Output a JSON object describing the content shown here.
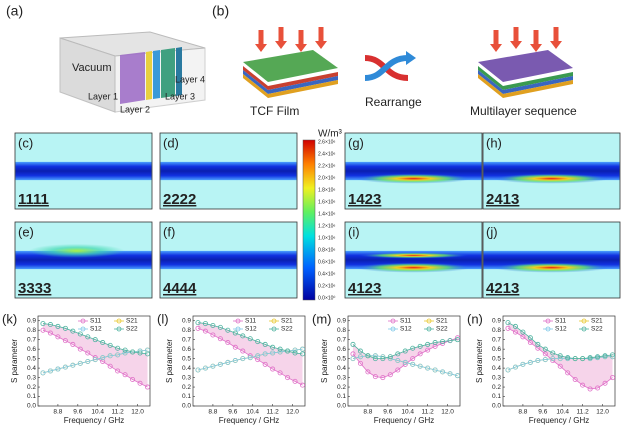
{
  "top": {
    "a_label": "(a)",
    "b_label": "(b)",
    "vacuum": "Vacuum",
    "layers": [
      "Layer 1",
      "Layer 2",
      "Layer 3",
      "Layer 4"
    ],
    "tcf": "TCF Film",
    "rearrange": "Rearrange",
    "multilayer": "Multilayer sequence"
  },
  "fields": [
    {
      "label": "(c)",
      "code": "1111"
    },
    {
      "label": "(d)",
      "code": "2222"
    },
    {
      "label": "(e)",
      "code": "3333"
    },
    {
      "label": "(f)",
      "code": "4444"
    },
    {
      "label": "(g)",
      "code": "1423"
    },
    {
      "label": "(h)",
      "code": "2413"
    },
    {
      "label": "(i)",
      "code": "4123"
    },
    {
      "label": "(j)",
      "code": "4213"
    }
  ],
  "colorbar": {
    "unit": "W/m³",
    "ticks": [
      "2.6×10⁶",
      "2.4×10⁶",
      "2.2×10⁶",
      "2.0×10⁶",
      "1.8×10⁶",
      "1.6×10⁶",
      "1.4×10⁶",
      "1.2×10⁶",
      "1.0×10⁶",
      "0.8×10⁶",
      "0.6×10⁶",
      "0.4×10⁶",
      "0.2×10⁶",
      "0.0×10⁰"
    ]
  },
  "chart_data": [
    {
      "type": "line",
      "panel": "(k)",
      "xlabel": "Frequency / GHz",
      "ylabel": "S parameter",
      "fill_color": "#f0b8dc",
      "x": [
        8.2,
        8.5,
        8.8,
        9.1,
        9.4,
        9.7,
        10.0,
        10.3,
        10.6,
        10.9,
        11.2,
        11.5,
        11.8,
        12.1,
        12.4
      ],
      "series": [
        {
          "name": "S11",
          "color": "#e070c8",
          "values": [
            0.8,
            0.77,
            0.73,
            0.69,
            0.65,
            0.6,
            0.56,
            0.51,
            0.47,
            0.42,
            0.37,
            0.33,
            0.28,
            0.24,
            0.2
          ]
        },
        {
          "name": "S21",
          "color": "#e8c830",
          "values": [
            0.35,
            0.37,
            0.39,
            0.41,
            0.43,
            0.45,
            0.47,
            0.49,
            0.51,
            0.53,
            0.54,
            0.56,
            0.57,
            0.58,
            0.59
          ]
        },
        {
          "name": "S12",
          "color": "#7fc8e8",
          "values": [
            0.35,
            0.37,
            0.39,
            0.41,
            0.43,
            0.45,
            0.47,
            0.49,
            0.51,
            0.53,
            0.54,
            0.56,
            0.57,
            0.58,
            0.59
          ]
        },
        {
          "name": "S22",
          "color": "#4fb3a0",
          "values": [
            0.87,
            0.86,
            0.84,
            0.82,
            0.79,
            0.76,
            0.73,
            0.7,
            0.67,
            0.64,
            0.61,
            0.59,
            0.57,
            0.56,
            0.55
          ]
        }
      ],
      "xlim": [
        8.0,
        12.5
      ],
      "ylim": [
        0,
        0.95
      ],
      "xticks": [
        8.8,
        9.6,
        10.4,
        11.2,
        {
          "value": 12,
          "label": "12.0"
        }
      ],
      "yticks": [
        {
          "value": 0,
          "label": "0.0"
        },
        0.1,
        0.2,
        0.3,
        0.4,
        0.5,
        0.6,
        0.7,
        0.8,
        0.9
      ]
    },
    {
      "type": "line",
      "panel": "(l)",
      "xlabel": "Frequency / GHz",
      "ylabel": "S parameter",
      "fill_color": "#f0b8dc",
      "x": [
        8.2,
        8.5,
        8.8,
        9.1,
        9.4,
        9.7,
        10.0,
        10.3,
        10.6,
        10.9,
        11.2,
        11.5,
        11.8,
        12.1,
        12.4
      ],
      "series": [
        {
          "name": "S11",
          "color": "#e070c8",
          "values": [
            0.82,
            0.79,
            0.75,
            0.71,
            0.67,
            0.62,
            0.58,
            0.53,
            0.49,
            0.44,
            0.39,
            0.35,
            0.3,
            0.26,
            0.22
          ]
        },
        {
          "name": "S21",
          "color": "#e8c830",
          "values": [
            0.38,
            0.4,
            0.42,
            0.44,
            0.46,
            0.48,
            0.5,
            0.51,
            0.53,
            0.55,
            0.56,
            0.57,
            0.58,
            0.59,
            0.6
          ]
        },
        {
          "name": "S12",
          "color": "#7fc8e8",
          "values": [
            0.38,
            0.4,
            0.42,
            0.44,
            0.46,
            0.48,
            0.5,
            0.51,
            0.53,
            0.55,
            0.56,
            0.57,
            0.58,
            0.59,
            0.6
          ]
        },
        {
          "name": "S22",
          "color": "#4fb3a0",
          "values": [
            0.88,
            0.87,
            0.85,
            0.83,
            0.8,
            0.77,
            0.74,
            0.71,
            0.68,
            0.65,
            0.62,
            0.6,
            0.58,
            0.56,
            0.55
          ]
        }
      ],
      "xlim": [
        8.0,
        12.5
      ],
      "ylim": [
        0,
        0.95
      ],
      "xticks": [
        8.8,
        9.6,
        10.4,
        11.2,
        {
          "value": 12,
          "label": "12.0"
        }
      ],
      "yticks": [
        {
          "value": 0,
          "label": "0.0"
        },
        0.1,
        0.2,
        0.3,
        0.4,
        0.5,
        0.6,
        0.7,
        0.8,
        0.9
      ]
    },
    {
      "type": "line",
      "panel": "(m)",
      "xlabel": "Frequency / GHz",
      "ylabel": "S parameter",
      "fill_color": "#f0b8dc",
      "x": [
        8.2,
        8.5,
        8.8,
        9.1,
        9.4,
        9.7,
        10.0,
        10.3,
        10.6,
        10.9,
        11.2,
        11.5,
        11.8,
        12.1,
        12.4
      ],
      "series": [
        {
          "name": "S11",
          "color": "#e070c8",
          "values": [
            0.55,
            0.45,
            0.36,
            0.31,
            0.3,
            0.33,
            0.38,
            0.44,
            0.5,
            0.55,
            0.59,
            0.63,
            0.66,
            0.69,
            0.72
          ]
        },
        {
          "name": "S21",
          "color": "#e8c830",
          "values": [
            0.5,
            0.52,
            0.53,
            0.53,
            0.52,
            0.5,
            0.48,
            0.46,
            0.44,
            0.42,
            0.4,
            0.38,
            0.36,
            0.34,
            0.32
          ]
        },
        {
          "name": "S12",
          "color": "#7fc8e8",
          "values": [
            0.5,
            0.52,
            0.53,
            0.53,
            0.52,
            0.5,
            0.48,
            0.46,
            0.44,
            0.42,
            0.4,
            0.38,
            0.36,
            0.34,
            0.32
          ]
        },
        {
          "name": "S22",
          "color": "#4fb3a0",
          "values": [
            0.65,
            0.58,
            0.53,
            0.5,
            0.5,
            0.52,
            0.55,
            0.58,
            0.61,
            0.63,
            0.65,
            0.67,
            0.68,
            0.69,
            0.7
          ]
        }
      ],
      "xlim": [
        8.0,
        12.5
      ],
      "ylim": [
        0,
        0.95
      ],
      "xticks": [
        8.8,
        9.6,
        10.4,
        11.2,
        {
          "value": 12,
          "label": "12.0"
        }
      ],
      "yticks": [
        {
          "value": 0,
          "label": "0.0"
        },
        0.1,
        0.2,
        0.3,
        0.4,
        0.5,
        0.6,
        0.7,
        0.8,
        0.9
      ]
    },
    {
      "type": "line",
      "panel": "(n)",
      "xlabel": "Frequency / GHz",
      "ylabel": "S parameter",
      "fill_color": "#f0b8dc",
      "x": [
        8.2,
        8.5,
        8.8,
        9.1,
        9.4,
        9.7,
        10.0,
        10.3,
        10.6,
        10.9,
        11.2,
        11.5,
        11.8,
        12.1,
        12.4
      ],
      "series": [
        {
          "name": "S11",
          "color": "#e070c8",
          "values": [
            0.82,
            0.78,
            0.73,
            0.67,
            0.61,
            0.55,
            0.48,
            0.42,
            0.35,
            0.28,
            0.22,
            0.18,
            0.19,
            0.24,
            0.3
          ]
        },
        {
          "name": "S21",
          "color": "#e8c830",
          "values": [
            0.38,
            0.41,
            0.44,
            0.46,
            0.48,
            0.49,
            0.5,
            0.5,
            0.5,
            0.5,
            0.5,
            0.5,
            0.51,
            0.52,
            0.52
          ]
        },
        {
          "name": "S12",
          "color": "#7fc8e8",
          "values": [
            0.38,
            0.41,
            0.44,
            0.46,
            0.48,
            0.49,
            0.5,
            0.5,
            0.5,
            0.5,
            0.5,
            0.5,
            0.51,
            0.52,
            0.52
          ]
        },
        {
          "name": "S22",
          "color": "#4fb3a0",
          "values": [
            0.88,
            0.84,
            0.78,
            0.72,
            0.65,
            0.6,
            0.56,
            0.53,
            0.51,
            0.5,
            0.5,
            0.51,
            0.52,
            0.53,
            0.54
          ]
        }
      ],
      "xlim": [
        8.0,
        12.5
      ],
      "ylim": [
        0,
        0.95
      ],
      "xticks": [
        8.8,
        9.6,
        10.4,
        11.2,
        {
          "value": 12,
          "label": "12.0"
        }
      ],
      "yticks": [
        {
          "value": 0,
          "label": "0.0"
        },
        0.1,
        0.2,
        0.3,
        0.4,
        0.5,
        0.6,
        0.7,
        0.8,
        0.9
      ]
    }
  ]
}
